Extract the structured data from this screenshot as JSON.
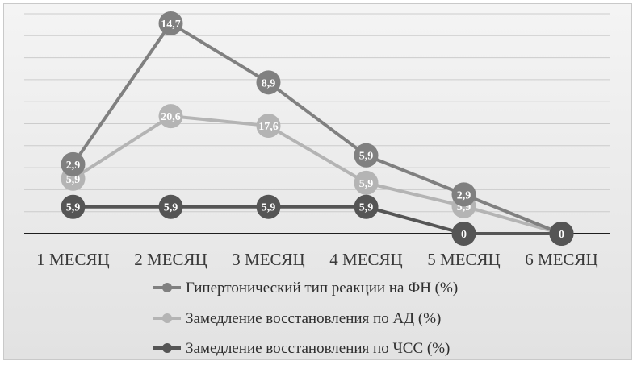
{
  "chart_data": {
    "type": "line",
    "title": "",
    "xlabel": "",
    "ylabel": "",
    "categories": [
      "1 МЕСЯЦ",
      "2 МЕСЯЦ",
      "3 МЕСЯЦ",
      "4 МЕСЯЦ",
      "5 МЕСЯЦ",
      "6 МЕСЯЦ"
    ],
    "ylim": [
      0,
      32
    ],
    "grid": true,
    "legend_position": "bottom",
    "series": [
      {
        "name": "Гипертонический тип реакции на ФН (%)",
        "color": "#808080",
        "values": [
          2.9,
          14.7,
          8.9,
          5.9,
          2.9,
          0
        ],
        "point_labels": [
          "2,9",
          "14,7",
          "8,9",
          "5,9",
          "2,9",
          "0"
        ],
        "plot_values": [
          10.1,
          30.6,
          22.0,
          11.4,
          5.7,
          0
        ]
      },
      {
        "name": "Замедление восстановления по АД (%)",
        "color": "#b4b4b4",
        "values": [
          5.9,
          20.6,
          17.6,
          5.9,
          5.9,
          0
        ],
        "point_labels": [
          "5,9",
          "20,6",
          "17,6",
          "5,9",
          "5,9",
          "0"
        ],
        "plot_values": [
          8.0,
          17.1,
          15.7,
          7.4,
          4.0,
          0
        ]
      },
      {
        "name": "Замедление восстановления по ЧСС (%)",
        "color": "#555555",
        "values": [
          5.9,
          5.9,
          5.9,
          5.9,
          0,
          0
        ],
        "point_labels": [
          "5,9",
          "5,9",
          "5,9",
          "5,9",
          "0",
          "0"
        ],
        "plot_values": [
          3.9,
          3.9,
          3.9,
          3.9,
          0,
          0
        ]
      }
    ]
  }
}
